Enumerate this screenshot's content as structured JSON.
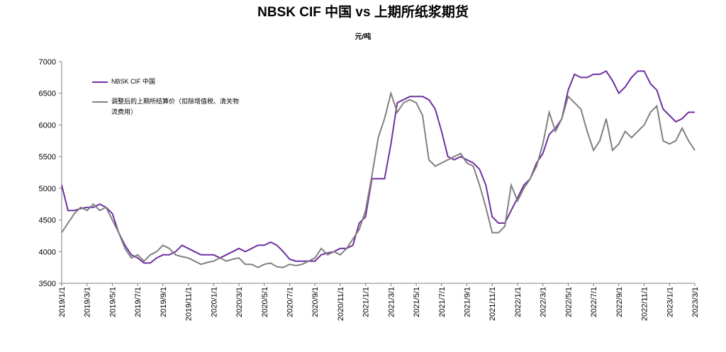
{
  "chart_data": {
    "type": "line",
    "title": "NBSK CIF 中国 vs 上期所纸浆期货",
    "subtitle": "元/吨",
    "x": [
      "2019/1/1",
      "2019/1/15",
      "2019/2/1",
      "2019/2/15",
      "2019/3/1",
      "2019/3/15",
      "2019/4/1",
      "2019/4/15",
      "2019/5/1",
      "2019/5/15",
      "2019/6/1",
      "2019/6/15",
      "2019/7/1",
      "2019/7/15",
      "2019/8/1",
      "2019/8/15",
      "2019/9/1",
      "2019/9/15",
      "2019/10/1",
      "2019/10/15",
      "2019/11/1",
      "2019/11/15",
      "2019/12/1",
      "2019/12/15",
      "2020/1/1",
      "2020/1/15",
      "2020/2/1",
      "2020/2/15",
      "2020/3/1",
      "2020/3/15",
      "2020/4/1",
      "2020/4/15",
      "2020/5/1",
      "2020/5/15",
      "2020/6/1",
      "2020/6/15",
      "2020/7/1",
      "2020/7/15",
      "2020/8/1",
      "2020/8/15",
      "2020/9/1",
      "2020/9/15",
      "2020/10/1",
      "2020/10/15",
      "2020/11/1",
      "2020/11/15",
      "2020/12/1",
      "2020/12/15",
      "2021/1/1",
      "2021/1/15",
      "2021/2/1",
      "2021/2/15",
      "2021/3/1",
      "2021/3/15",
      "2021/4/1",
      "2021/4/15",
      "2021/5/1",
      "2021/5/15",
      "2021/6/1",
      "2021/6/15",
      "2021/7/1",
      "2021/7/15",
      "2021/8/1",
      "2021/8/15",
      "2021/9/1",
      "2021/9/15",
      "2021/10/1",
      "2021/10/15",
      "2021/11/1",
      "2021/11/15",
      "2021/12/1",
      "2021/12/15",
      "2022/1/1",
      "2022/1/15",
      "2022/2/1",
      "2022/2/15",
      "2022/3/1",
      "2022/3/15",
      "2022/4/1",
      "2022/4/15",
      "2022/5/1",
      "2022/5/15",
      "2022/6/1",
      "2022/6/15",
      "2022/7/1",
      "2022/7/15",
      "2022/8/1",
      "2022/8/15",
      "2022/9/1",
      "2022/9/15",
      "2022/10/1",
      "2022/10/15",
      "2022/11/1",
      "2022/11/15",
      "2022/12/1",
      "2022/12/15",
      "2023/1/1",
      "2023/1/15",
      "2023/2/1",
      "2023/2/15",
      "2023/3/1"
    ],
    "xticks": [
      "2019/1/1",
      "2019/3/1",
      "2019/5/1",
      "2019/7/1",
      "2019/9/1",
      "2019/11/1",
      "2020/1/1",
      "2020/3/1",
      "2020/5/1",
      "2020/7/1",
      "2020/9/1",
      "2020/11/1",
      "2021/1/1",
      "2021/3/1",
      "2021/5/1",
      "2021/7/1",
      "2021/9/1",
      "2021/11/1",
      "2022/1/1",
      "2022/3/1",
      "2022/5/1",
      "2022/7/1",
      "2022/9/1",
      "2022/11/1",
      "2023/1/1",
      "2023/3/1"
    ],
    "series": [
      {
        "name": "NBSK CIF 中国",
        "color": "#7030a0",
        "values": [
          5050,
          4650,
          4650,
          4680,
          4700,
          4700,
          4750,
          4700,
          4600,
          4300,
          4100,
          3950,
          3900,
          3820,
          3820,
          3900,
          3950,
          3950,
          4000,
          4100,
          4050,
          4000,
          3950,
          3950,
          3950,
          3900,
          3950,
          4000,
          4050,
          4000,
          4050,
          4100,
          4100,
          4150,
          4100,
          4000,
          3880,
          3850,
          3850,
          3850,
          3850,
          3950,
          3980,
          4000,
          4050,
          4050,
          4100,
          4450,
          4550,
          5150,
          5150,
          5150,
          5700,
          6350,
          6400,
          6450,
          6450,
          6450,
          6400,
          6250,
          5900,
          5500,
          5450,
          5500,
          5450,
          5400,
          5300,
          5050,
          4550,
          4450,
          4450,
          4650,
          4850,
          5050,
          5150,
          5400,
          5550,
          5850,
          5950,
          6100,
          6550,
          6800,
          6750,
          6750,
          6800,
          6800,
          6850,
          6700,
          6500,
          6600,
          6750,
          6850,
          6850,
          6650,
          6550,
          6250,
          6150,
          6050,
          6100,
          6200,
          6200
        ]
      },
      {
        "name": "调整后的上期所结算价（扣除增值税、清关物流费用）",
        "color": "#808080",
        "values": [
          4300,
          4450,
          4600,
          4700,
          4650,
          4750,
          4650,
          4700,
          4500,
          4300,
          4050,
          3900,
          3950,
          3850,
          3950,
          4000,
          4100,
          4050,
          3950,
          3920,
          3900,
          3850,
          3800,
          3830,
          3850,
          3900,
          3850,
          3880,
          3900,
          3800,
          3800,
          3750,
          3800,
          3820,
          3760,
          3750,
          3800,
          3780,
          3800,
          3850,
          3900,
          4050,
          3950,
          4000,
          3950,
          4050,
          4200,
          4350,
          4650,
          5200,
          5800,
          6100,
          6500,
          6200,
          6350,
          6400,
          6350,
          6150,
          5450,
          5350,
          5400,
          5450,
          5500,
          5550,
          5400,
          5350,
          5050,
          4700,
          4300,
          4300,
          4400,
          5050,
          4800,
          5000,
          5150,
          5350,
          5700,
          6200,
          5900,
          6100,
          6450,
          6350,
          6250,
          5900,
          5600,
          5750,
          6100,
          5600,
          5700,
          5900,
          5800,
          5900,
          6000,
          6200,
          6300,
          5750,
          5700,
          5750,
          5950,
          5750,
          5600
        ]
      }
    ],
    "ylim": [
      3500,
      7000
    ],
    "yticks": [
      3500,
      4000,
      4500,
      5000,
      5500,
      6000,
      6500,
      7000
    ]
  }
}
